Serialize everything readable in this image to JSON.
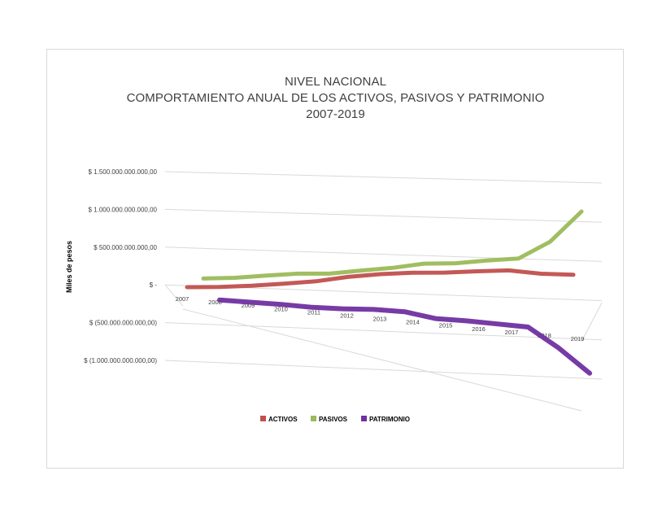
{
  "chart_data": {
    "type": "line",
    "title_lines": [
      "NIVEL NACIONAL",
      "COMPORTAMIENTO ANUAL DE LOS ACTIVOS, PASIVOS Y PATRIMONIO",
      "2007-2019"
    ],
    "ylabel": "Miles de pesos",
    "xlabel": "",
    "style": "3d-line",
    "ylim": [
      -1000000000000,
      1500000000000
    ],
    "y_ticks": [
      -1000000000000,
      -500000000000,
      0,
      500000000000,
      1000000000000,
      1500000000000
    ],
    "y_tick_labels": [
      "$ (1.000.000.000.000,00)",
      "$ (500.000.000.000,00)",
      "$ -",
      "$ 500.000.000.000,00",
      "$ 1.000.000.000.000,00",
      "$ 1.500.000.000.000,00"
    ],
    "categories": [
      "2007",
      "2008",
      "2009",
      "2010",
      "2011",
      "2012",
      "2013",
      "2014",
      "2015",
      "2016",
      "2017",
      "2018",
      "2019"
    ],
    "grid": true,
    "legend_position": "bottom",
    "series": [
      {
        "name": "ACTIVOS",
        "color": "#c0504d",
        "values": [
          250000000000,
          245000000000,
          255000000000,
          275000000000,
          300000000000,
          350000000000,
          380000000000,
          390000000000,
          385000000000,
          395000000000,
          400000000000,
          350000000000,
          330000000000
        ]
      },
      {
        "name": "PASIVOS",
        "color": "#9bbb59",
        "values": [
          300000000000,
          305000000000,
          330000000000,
          350000000000,
          345000000000,
          380000000000,
          410000000000,
          460000000000,
          460000000000,
          490000000000,
          510000000000,
          720000000000,
          1100000000000
        ]
      },
      {
        "name": "PATRIMONIO",
        "color": "#7030a0",
        "values": [
          -50000000000,
          -80000000000,
          -110000000000,
          -150000000000,
          -170000000000,
          -180000000000,
          -210000000000,
          -300000000000,
          -330000000000,
          -370000000000,
          -410000000000,
          -680000000000,
          -1000000000000
        ]
      }
    ]
  }
}
